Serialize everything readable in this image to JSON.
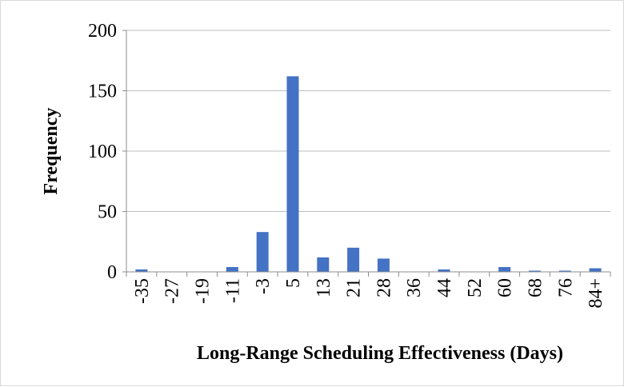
{
  "chart_data": {
    "type": "bar",
    "xlabel": "Long-Range Scheduling Effectiveness (Days)",
    "ylabel": "Frequency",
    "ylim": [
      0,
      200
    ],
    "yticks": [
      0,
      50,
      100,
      150,
      200
    ],
    "grid": true,
    "categories": [
      "-35",
      "-27",
      "-19",
      "-11",
      "-3",
      "5",
      "13",
      "21",
      "28",
      "36",
      "44",
      "52",
      "60",
      "68",
      "76",
      "84+"
    ],
    "values": [
      2,
      0,
      0,
      4,
      33,
      162,
      12,
      20,
      11,
      0,
      2,
      0,
      4,
      1,
      1,
      3
    ],
    "bar_color": "#4472C4",
    "gridline_color": "#bfbfbf",
    "axis_color": "#8c8c8c"
  }
}
